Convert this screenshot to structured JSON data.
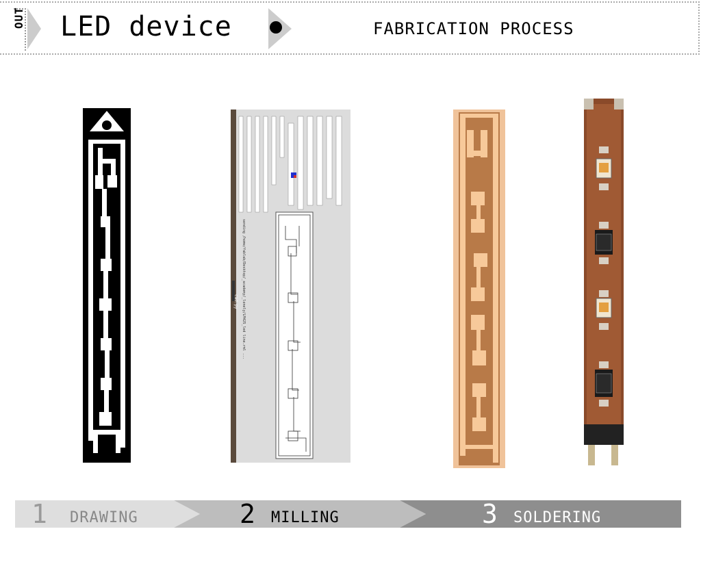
{
  "header": {
    "tag": "OUT",
    "title": "LED device",
    "subtitle": "FABRICATION PROCESS"
  },
  "screenshot": {
    "window_title": "cad.py",
    "status": "sending /home/fablab/Desktop/_academy/_lonely/LM425_led line.rml ...",
    "rows": [
      [
        "window size:",
        "450",
        "window width:",
        "45",
        "height:",
        "45"
      ],
      [
        "x min:",
        "2.6",
        "x width:",
        "3.492",
        "dx:",
        "4.426"
      ],
      [
        "y min:",
        "2.0",
        "y height:",
        "0.26",
        "xy:",
        "330"
      ],
      [
        "z min:",
        "0.005",
        "z max:",
        "0.05",
        "nz:",
        "1"
      ],
      [
        "intensity min:",
        "1",
        "intensity max:",
        "200"
      ],
      [
        "inches per unit:",
        "1.0"
      ]
    ],
    "buttons": {
      "insert": "insert image",
      "reload": "reload",
      "input": "input",
      "input_file": "/home/fablab/Desktop/",
      "cad": "cad.py r11/28/09",
      "view": "view",
      "quit": "quit",
      "render": "render",
      "output_format": "output format:",
      "output_file": "output file:",
      "output_path": "/home/fablab/c",
      "save": "save",
      "vector": "maximum vector fit error (lattice units):",
      "vector_val": ".75",
      "tool_diameter": "tool diameter:",
      "tool_val": "0.0156",
      "tool_overlap": "tool overlap:",
      "overlap_val": "0.5",
      "contours": "# contours (-1 for max):",
      "contours_val": "1",
      "contour_btn": "contour",
      "xy_speed": "xy speed:",
      "xy_val": "4",
      "z_speed": "z speed:",
      "z_val": "4",
      "x": "x:",
      "x_val": "1",
      "y": "y:",
      "y_val": "1",
      "move": "move",
      "send": "send to machine",
      "estimate": "estimated time: 3.0 minutes"
    }
  },
  "steps": [
    {
      "num": "1",
      "label": "DRAWING"
    },
    {
      "num": "2",
      "label": "MILLING"
    },
    {
      "num": "3",
      "label": "SOLDERING"
    }
  ],
  "colors": {
    "step1": "#dedede",
    "step2": "#bdbdbd",
    "step3": "#8e8e8e",
    "copper": "#e8a05c",
    "board": "#8a4a2a"
  }
}
